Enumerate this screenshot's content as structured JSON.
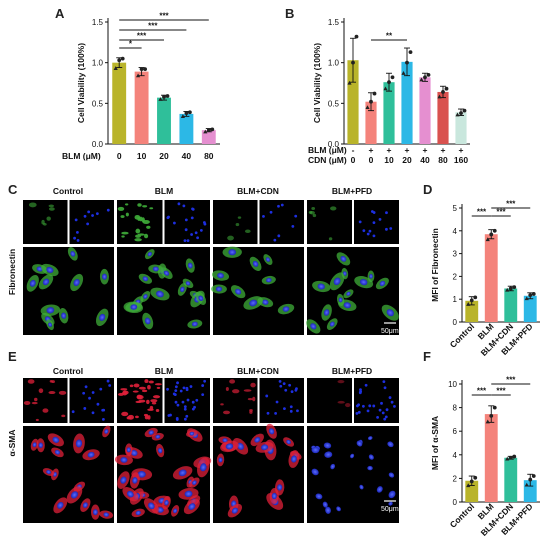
{
  "panels": {
    "A": "A",
    "B": "B",
    "C": "C",
    "D": "D",
    "E": "E",
    "F": "F"
  },
  "micro_groups": [
    "Control",
    "BLM",
    "BLM+CDN",
    "BLM+PFD"
  ],
  "row_labels": {
    "fibronectin": "Fibronectin",
    "asma": "α-SMA"
  },
  "scale_bar": "50μm",
  "colors": {
    "olive": "#b9b42a",
    "salmon": "#f4837b",
    "teal": "#2fbf9a",
    "sky": "#2cb8e6",
    "pink": "#e58fd0",
    "violet": "#c488e0",
    "red": "#d9524f",
    "pale": "#c9e7dd",
    "fibronectin_stain": "#3fae3a",
    "nuclei_stain": "#1d2fe0",
    "asma_stain": "#e0203a"
  },
  "chart_data": [
    {
      "type": "bar",
      "panel": "A",
      "ylabel": "Cell Viability (100%)",
      "row_label": "BLM (μM)",
      "categories": [
        "0",
        "10",
        "20",
        "40",
        "80"
      ],
      "values": [
        1.0,
        0.89,
        0.57,
        0.37,
        0.17
      ],
      "errors": [
        0.06,
        0.05,
        0.03,
        0.03,
        0.02
      ],
      "points": [
        [
          0.93,
          1.03,
          1.05
        ],
        [
          0.84,
          0.92,
          0.92
        ],
        [
          0.55,
          0.58,
          0.59
        ],
        [
          0.34,
          0.38,
          0.39
        ],
        [
          0.15,
          0.17,
          0.18
        ]
      ],
      "ylim": [
        0,
        1.5
      ],
      "yticks": [
        "0.0",
        "0.5",
        "1.0",
        "1.5"
      ],
      "significance": [
        {
          "from": 0,
          "to": 1,
          "label": "*"
        },
        {
          "from": 0,
          "to": 2,
          "label": "***"
        },
        {
          "from": 0,
          "to": 3,
          "label": "***"
        },
        {
          "from": 0,
          "to": 4,
          "label": "***"
        }
      ]
    },
    {
      "type": "bar",
      "panel": "B",
      "ylabel": "Cell Viability (100%)",
      "row_labels": [
        "BLM (μM)",
        "CDN (μM)"
      ],
      "blm_row": [
        "-",
        "+",
        "+",
        "+",
        "+",
        "+",
        "+"
      ],
      "cdn_row": [
        "0",
        "0",
        "10",
        "20",
        "40",
        "80",
        "160"
      ],
      "values": [
        1.03,
        0.52,
        0.76,
        1.01,
        0.82,
        0.64,
        0.39
      ],
      "errors": [
        0.27,
        0.11,
        0.11,
        0.17,
        0.05,
        0.07,
        0.04
      ],
      "points": [
        [
          0.75,
          1.0,
          1.32
        ],
        [
          0.45,
          0.52,
          0.62
        ],
        [
          0.68,
          0.76,
          0.82
        ],
        [
          0.87,
          1.0,
          1.13
        ],
        [
          0.79,
          0.82,
          0.85
        ],
        [
          0.58,
          0.64,
          0.68
        ],
        [
          0.36,
          0.38,
          0.41
        ]
      ],
      "ylim": [
        0,
        1.5
      ],
      "yticks": [
        "0.0",
        "0.5",
        "1.0",
        "1.5"
      ],
      "significance": [
        {
          "from": 1,
          "to": 3,
          "label": "**"
        }
      ]
    },
    {
      "type": "bar",
      "panel": "D",
      "ylabel": "MFI of Fibronectin",
      "categories": [
        "Control",
        "BLM",
        "BLM+CDN",
        "BLM+PFD"
      ],
      "values": [
        0.93,
        3.85,
        1.47,
        1.15
      ],
      "errors": [
        0.18,
        0.2,
        0.1,
        0.13
      ],
      "points": [
        [
          0.78,
          0.95,
          1.08
        ],
        [
          3.62,
          3.84,
          4.0
        ],
        [
          1.4,
          1.47,
          1.53
        ],
        [
          1.03,
          1.18,
          1.23
        ]
      ],
      "ylim": [
        0,
        5
      ],
      "yticks": [
        "0",
        "1",
        "2",
        "3",
        "4",
        "5"
      ],
      "significance": [
        {
          "from": 0,
          "to": 1,
          "label": "***"
        },
        {
          "from": 1,
          "to": 2,
          "label": "***"
        },
        {
          "from": 1,
          "to": 3,
          "label": "***"
        }
      ]
    },
    {
      "type": "bar",
      "panel": "F",
      "ylabel": "MFI of α-SMA",
      "categories": [
        "Control",
        "BLM",
        "BLM+CDN",
        "BLM+PFD"
      ],
      "values": [
        1.8,
        7.45,
        3.75,
        1.85
      ],
      "errors": [
        0.4,
        0.7,
        0.12,
        0.5
      ],
      "points": [
        [
          1.4,
          1.75,
          2.05
        ],
        [
          6.8,
          7.3,
          8.0
        ],
        [
          3.65,
          3.75,
          3.85
        ],
        [
          1.45,
          1.9,
          2.2
        ]
      ],
      "ylim": [
        0,
        10
      ],
      "yticks": [
        "0",
        "2",
        "4",
        "6",
        "8",
        "10"
      ],
      "significance": [
        {
          "from": 0,
          "to": 1,
          "label": "***"
        },
        {
          "from": 1,
          "to": 2,
          "label": "***"
        },
        {
          "from": 1,
          "to": 3,
          "label": "***"
        }
      ]
    }
  ]
}
